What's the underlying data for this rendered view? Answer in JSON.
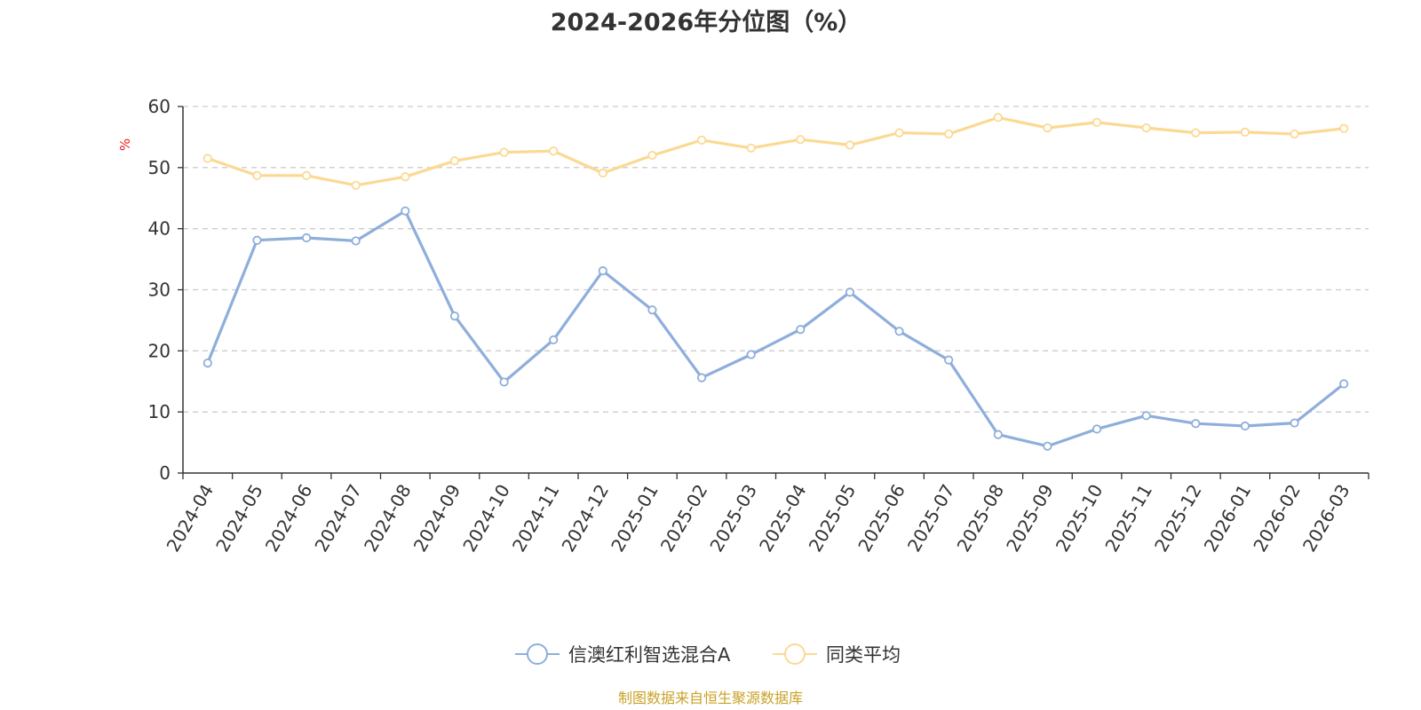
{
  "chart_data": {
    "type": "line",
    "title": "2024-2026年分位图（%）",
    "ylabel": "%",
    "xlabel": "",
    "ylim": [
      0,
      60
    ],
    "yticks": [
      0,
      10,
      20,
      30,
      40,
      50,
      60
    ],
    "grid": true,
    "legend_position": "bottom-center",
    "categories": [
      "2024-04",
      "2024-05",
      "2024-06",
      "2024-07",
      "2024-08",
      "2024-09",
      "2024-10",
      "2024-11",
      "2024-12",
      "2025-01",
      "2025-02",
      "2025-03",
      "2025-04",
      "2025-05",
      "2025-06",
      "2025-07",
      "2025-08",
      "2025-09",
      "2025-10",
      "2025-11",
      "2025-12",
      "2026-01",
      "2026-02",
      "2026-03"
    ],
    "series": [
      {
        "name": "信澳红利智选混合A",
        "color": "#8eaedb",
        "values": [
          18.0,
          38.1,
          38.5,
          38.0,
          42.9,
          25.7,
          14.9,
          21.8,
          33.1,
          26.7,
          15.6,
          19.4,
          23.5,
          29.6,
          23.2,
          18.5,
          6.3,
          4.4,
          7.2,
          9.4,
          8.1,
          7.7,
          8.2,
          14.6
        ]
      },
      {
        "name": "同类平均",
        "color": "#fcd993",
        "values": [
          51.5,
          48.7,
          48.7,
          47.1,
          48.5,
          51.1,
          52.5,
          52.7,
          49.1,
          52.0,
          54.5,
          53.2,
          54.6,
          53.7,
          55.7,
          55.5,
          58.2,
          56.5,
          57.4,
          56.5,
          55.7,
          55.8,
          55.5,
          56.4
        ]
      }
    ]
  },
  "footer": {
    "source": "制图数据来自恒生聚源数据库"
  },
  "colors": {
    "axis": "#333333",
    "grid": "#cccccc",
    "ylabel": "#e8191c",
    "source": "#c9a227"
  }
}
